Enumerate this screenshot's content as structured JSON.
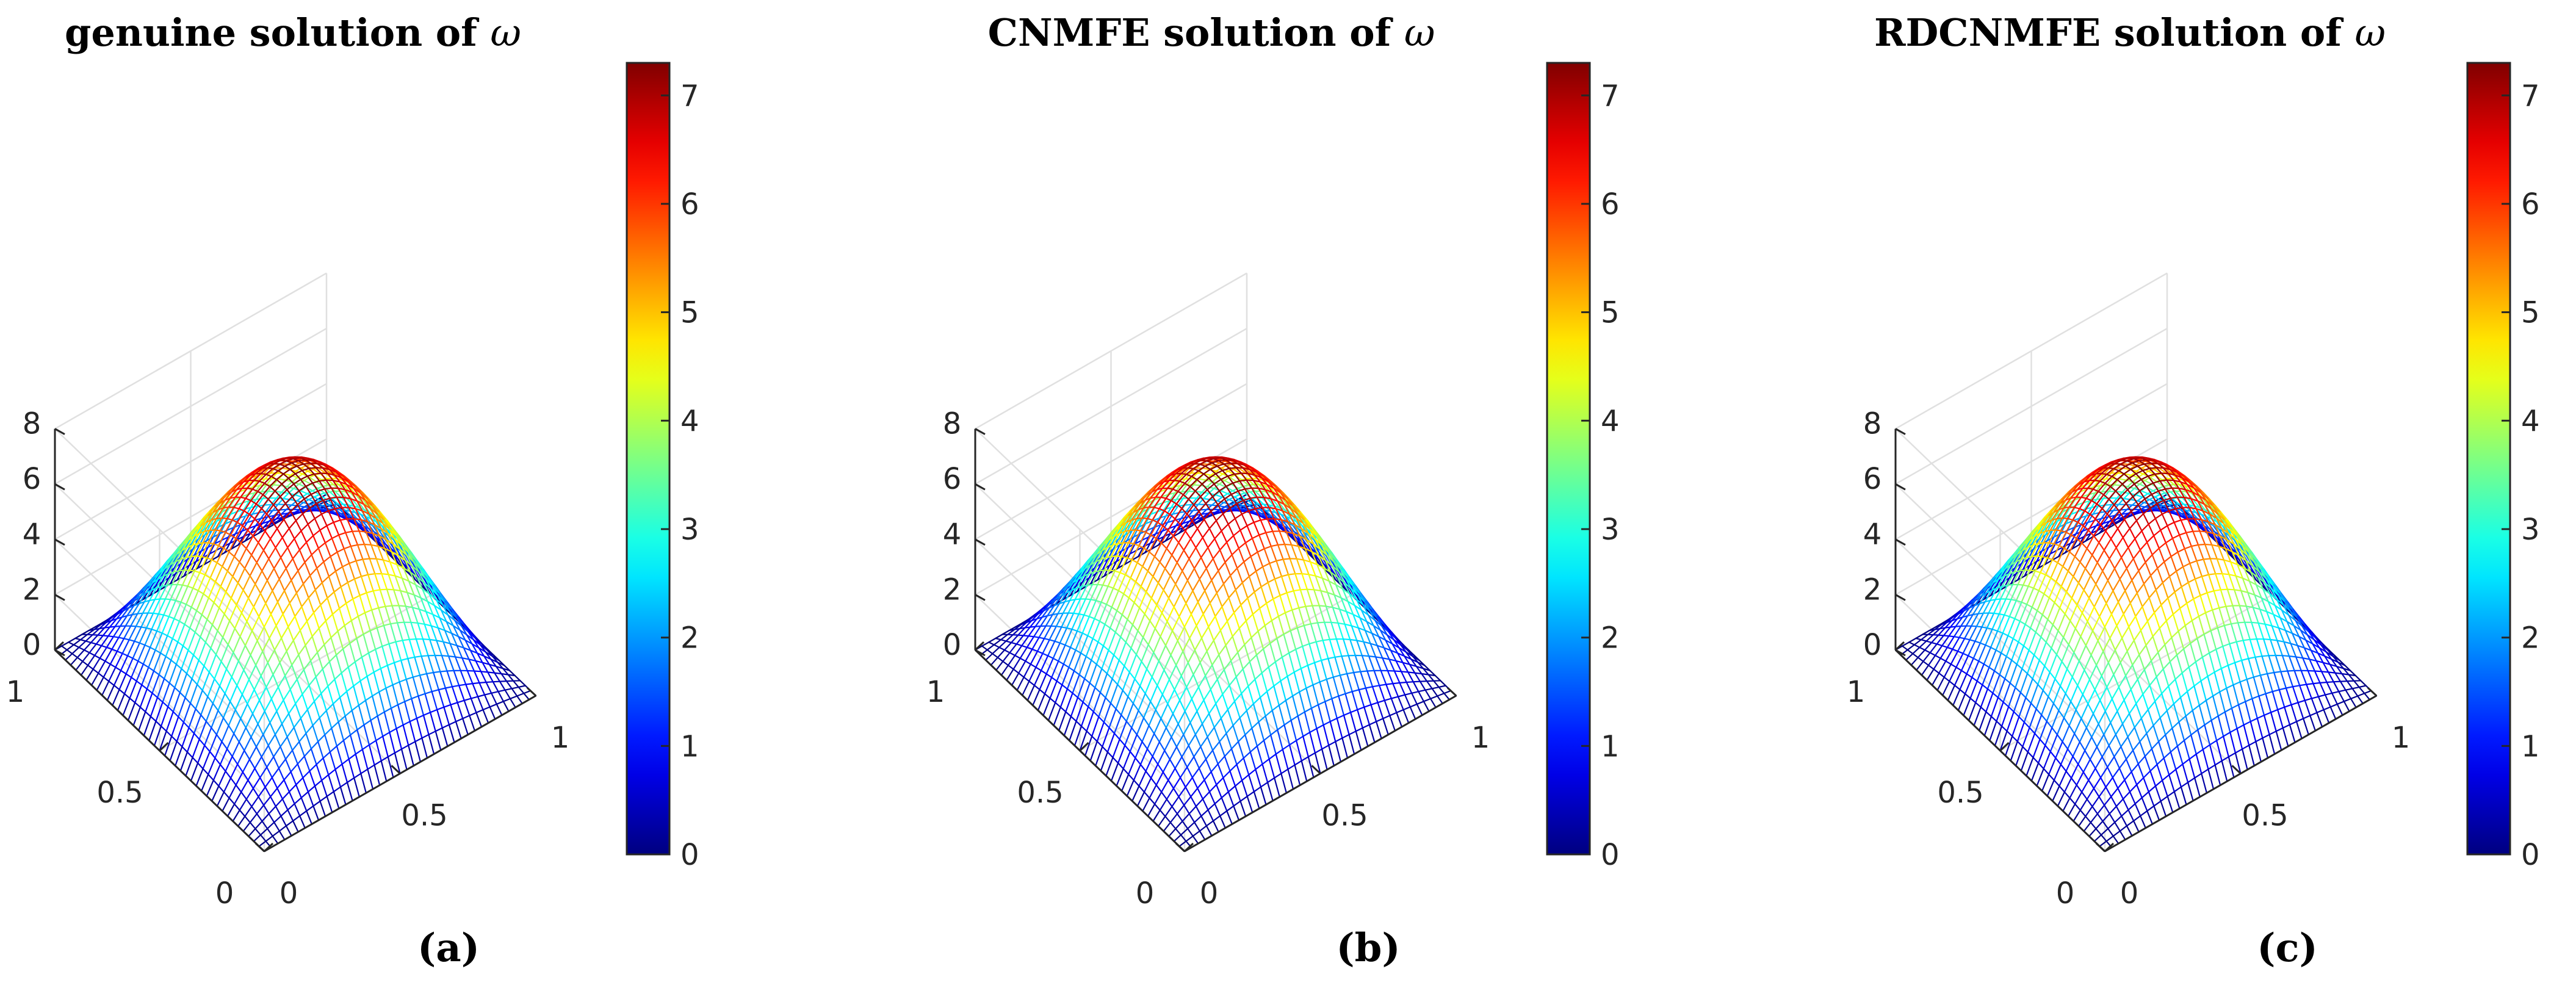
{
  "figure_labels": [
    "(a)",
    "(b)",
    "(c)"
  ],
  "chart_data": [
    {
      "type": "surface",
      "title": "genuine solution of ",
      "title_symbol": "ω",
      "caption": "(a)",
      "x_range": [
        0,
        1
      ],
      "y_range": [
        0,
        1
      ],
      "zlim": [
        0,
        8
      ],
      "z_ticks": [
        "0",
        "2",
        "4",
        "6",
        "8"
      ],
      "x_ticks": [
        "0",
        "0.5",
        "1"
      ],
      "y_ticks": [
        "0",
        "0.5",
        "1"
      ],
      "function": "7.2 * sin(pi*x) * sin(pi*y)",
      "peak_value": 7.2,
      "grid_lines_per_axis": 41,
      "colormap": "jet",
      "colorbar": {
        "range": [
          0,
          7.3
        ],
        "ticks": [
          "0",
          "1",
          "2",
          "3",
          "4",
          "5",
          "6",
          "7"
        ]
      },
      "grid": true
    },
    {
      "type": "surface",
      "title": "CNMFE solution of ",
      "title_symbol": "ω",
      "caption": "(b)",
      "x_range": [
        0,
        1
      ],
      "y_range": [
        0,
        1
      ],
      "zlim": [
        0,
        8
      ],
      "z_ticks": [
        "0",
        "2",
        "4",
        "6",
        "8"
      ],
      "x_ticks": [
        "0",
        "0.5",
        "1"
      ],
      "y_ticks": [
        "0",
        "0.5",
        "1"
      ],
      "function": "7.2 * sin(pi*x) * sin(pi*y)",
      "peak_value": 7.2,
      "grid_lines_per_axis": 41,
      "colormap": "jet",
      "colorbar": {
        "range": [
          0,
          7.3
        ],
        "ticks": [
          "0",
          "1",
          "2",
          "3",
          "4",
          "5",
          "6",
          "7"
        ]
      },
      "grid": true
    },
    {
      "type": "surface",
      "title": "RDCNMFE solution of ",
      "title_symbol": "ω",
      "caption": "(c)",
      "x_range": [
        0,
        1
      ],
      "y_range": [
        0,
        1
      ],
      "zlim": [
        0,
        8
      ],
      "z_ticks": [
        "0",
        "2",
        "4",
        "6",
        "8"
      ],
      "x_ticks": [
        "0",
        "0.5",
        "1"
      ],
      "y_ticks": [
        "0",
        "0.5",
        "1"
      ],
      "function": "7.2 * sin(pi*x) * sin(pi*y)",
      "peak_value": 7.2,
      "grid_lines_per_axis": 41,
      "colormap": "jet",
      "colorbar": {
        "range": [
          0,
          7.3
        ],
        "ticks": [
          "0",
          "1",
          "2",
          "3",
          "4",
          "5",
          "6",
          "7"
        ]
      },
      "grid": true
    }
  ]
}
